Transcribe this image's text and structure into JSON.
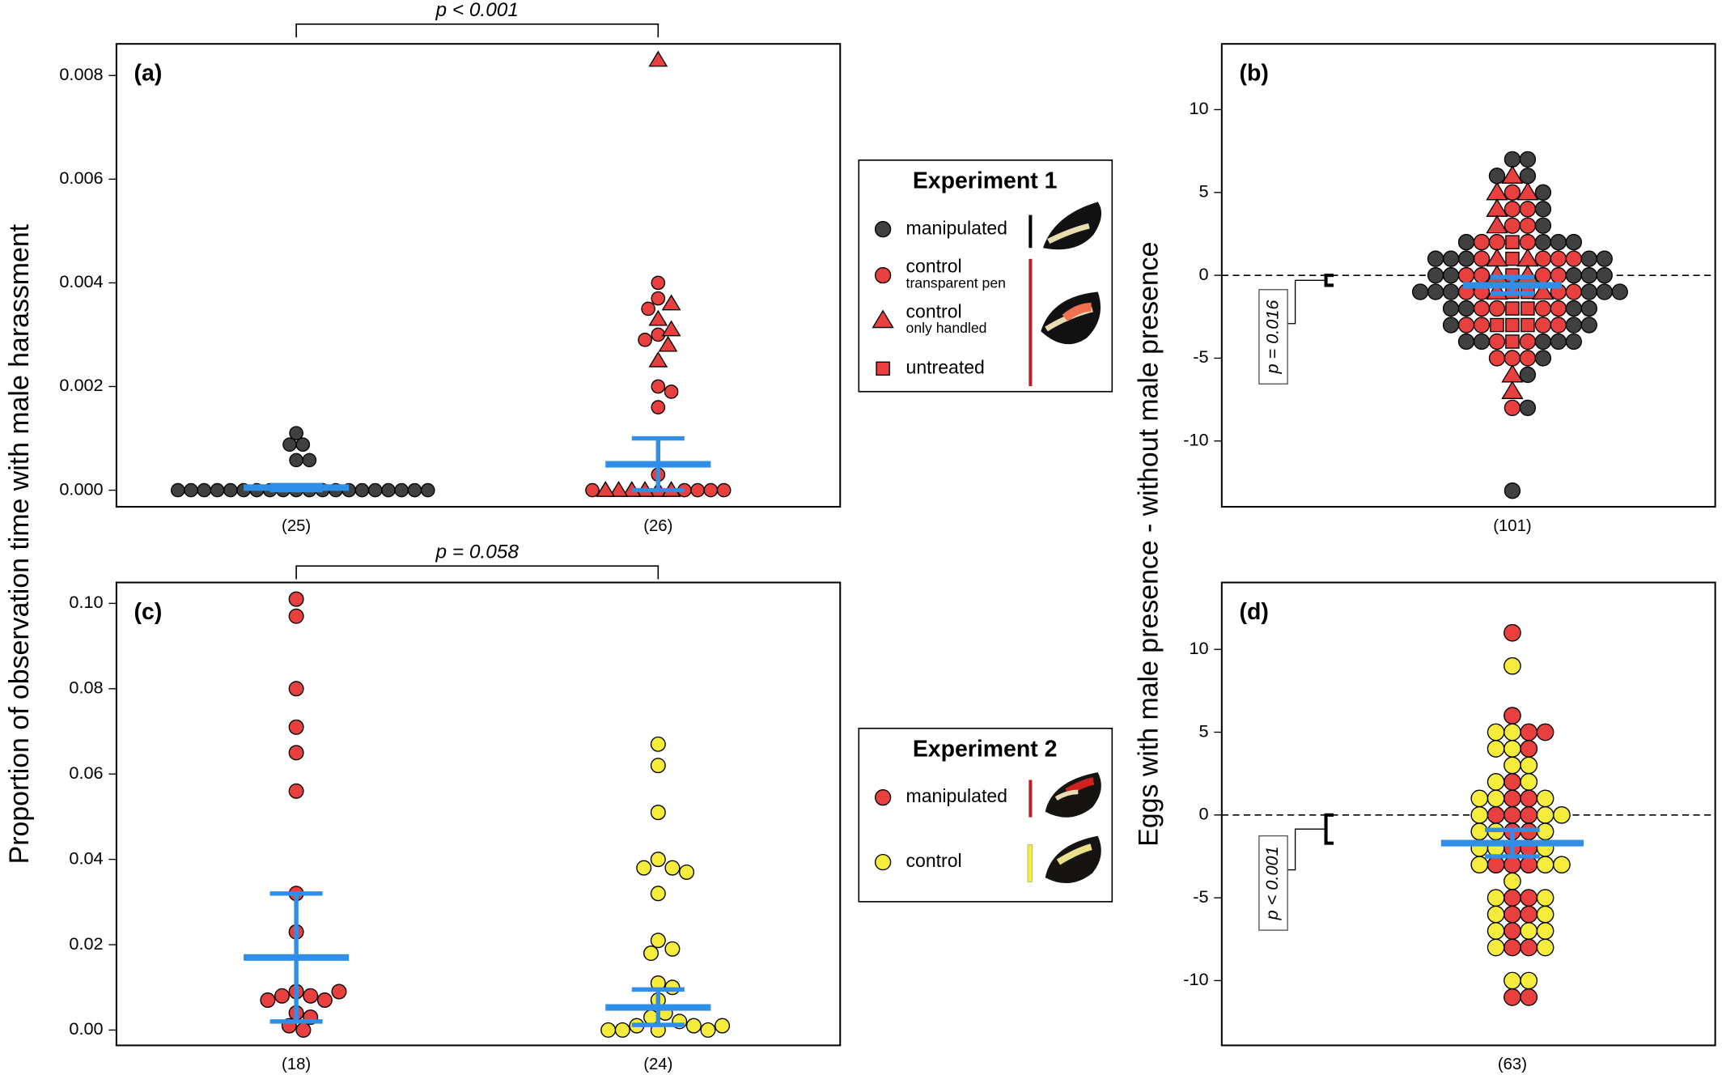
{
  "chart_data": [
    {
      "type": "beeswarm",
      "panel": "(a)",
      "ylabel": "Proportion of observation time with male harassment",
      "ylim": [
        -0.00032,
        0.00861
      ],
      "yticks": [
        {
          "value": 0,
          "label": "0.000"
        },
        {
          "value": 0.002,
          "label": "0.002"
        },
        {
          "value": 0.004,
          "label": "0.004"
        },
        {
          "value": 0.006,
          "label": "0.006"
        },
        {
          "value": 0.008,
          "label": "0.008"
        }
      ],
      "categories": [
        "(25)",
        "(26)"
      ],
      "groups": [
        {
          "series": [
            {
              "shape": "circle",
              "color": "#404040",
              "values": [
                0.0011,
                0.00088,
                0.00088,
                0.00058,
                0.00058,
                0,
                0,
                0,
                0,
                0,
                0,
                0,
                0,
                0,
                0,
                0,
                0,
                0,
                0,
                0,
                0,
                0,
                0,
                0,
                0
              ]
            }
          ],
          "mean": 5e-05,
          "ci": [
            0,
            0.0001
          ]
        },
        {
          "series": [
            {
              "shape": "circle",
              "color": "#e8403f",
              "values": [
                0.004,
                0.0037,
                0.0035,
                0.003,
                0.0029,
                0.002,
                0.0019,
                0.0016,
                0.0003,
                0,
                0,
                0,
                0,
                0
              ]
            },
            {
              "shape": "triangle",
              "color": "#e8403f",
              "values": [
                0.0083,
                0.0036,
                0.0033,
                0.0031,
                0.0028,
                0.0025,
                0,
                0,
                0,
                0,
                0,
                0
              ]
            }
          ],
          "mean": 0.0005,
          "ci": [
            0,
            0.001
          ]
        }
      ],
      "annotation": "p < 0.001"
    },
    {
      "type": "beeswarm",
      "panel": "(b)",
      "ylabel": "Eggs with male presence - without male presence",
      "ylim": [
        -13.97,
        13.97
      ],
      "yticks": [
        -10,
        -5,
        0,
        5,
        10
      ],
      "categories": [
        "(101)"
      ],
      "zero_line": true,
      "groups": [
        {
          "series": [
            {
              "shape": "circle",
              "color": "#404040",
              "values": [
                7,
                7,
                6,
                6,
                5,
                4,
                3,
                2,
                2,
                2,
                2,
                1,
                1,
                1,
                1,
                1,
                0,
                0,
                0,
                0,
                0,
                -1,
                -1,
                -1,
                -1,
                -1,
                -1,
                -2,
                -2,
                -2,
                -2,
                -3,
                -3,
                -3,
                -4,
                -4,
                -4,
                -4,
                -4,
                -5,
                -6,
                -8,
                -13
              ]
            },
            {
              "shape": "circle",
              "color": "#e8403f",
              "values": [
                5,
                4,
                4,
                3,
                3,
                2,
                2,
                2,
                1,
                1,
                1,
                1,
                0,
                0,
                0,
                0,
                -1,
                -1,
                -1,
                -1,
                -2,
                -2,
                -2,
                -2,
                -3,
                -3,
                -3,
                -3,
                -4,
                -4,
                -5,
                -5,
                -5,
                -8
              ]
            },
            {
              "shape": "triangle",
              "color": "#e8403f",
              "values": [
                6,
                5,
                5,
                4,
                3,
                1,
                1,
                0,
                0,
                -1,
                -1,
                -6,
                -7
              ]
            },
            {
              "shape": "square",
              "color": "#e8403f",
              "values": [
                2,
                1,
                0,
                -1,
                -1,
                -2,
                -2,
                -3,
                -3,
                -3,
                -4
              ]
            }
          ],
          "mean": -0.6,
          "ci": [
            -1.1,
            -0.1
          ]
        }
      ],
      "annotation": "p = 0.016"
    },
    {
      "type": "beeswarm",
      "panel": "(c)",
      "ylim": [
        -0.0036,
        0.1049
      ],
      "yticks": [
        {
          "value": 0,
          "label": "0.00"
        },
        {
          "value": 0.02,
          "label": "0.02"
        },
        {
          "value": 0.04,
          "label": "0.04"
        },
        {
          "value": 0.06,
          "label": "0.06"
        },
        {
          "value": 0.08,
          "label": "0.08"
        },
        {
          "value": 0.1,
          "label": "0.10"
        }
      ],
      "categories": [
        "(18)",
        "(24)"
      ],
      "groups": [
        {
          "series": [
            {
              "shape": "circle",
              "color": "#e8403f",
              "values": [
                0.101,
                0.097,
                0.08,
                0.071,
                0.065,
                0.056,
                0.032,
                0.023,
                0.009,
                0.008,
                0.008,
                0.007,
                0.007,
                0.004,
                0.003,
                0.001,
                0,
                0.009
              ]
            }
          ],
          "mean": 0.017,
          "ci": [
            0.002,
            0.032
          ]
        },
        {
          "series": [
            {
              "shape": "circle",
              "color": "#f5ec3c",
              "values": [
                0.067,
                0.062,
                0.051,
                0.04,
                0.038,
                0.038,
                0.037,
                0.032,
                0.021,
                0.019,
                0.018,
                0.011,
                0.01,
                0.007,
                0.004,
                0.003,
                0.002,
                0.001,
                0.001,
                0,
                0,
                0,
                0,
                0.001
              ]
            }
          ],
          "mean": 0.0053,
          "ci": [
            0.0012,
            0.0095
          ]
        }
      ],
      "annotation": "p = 0.058"
    },
    {
      "type": "beeswarm",
      "panel": "(d)",
      "ylim": [
        -13.91,
        14.04
      ],
      "yticks": [
        -10,
        -5,
        0,
        5,
        10
      ],
      "categories": [
        "(63)"
      ],
      "zero_line": true,
      "groups": [
        {
          "series": [
            {
              "shape": "circle",
              "color": "#e8403f",
              "values": [
                11,
                6,
                5,
                5,
                4,
                2,
                1,
                1,
                0,
                0,
                0,
                -1,
                -1,
                -2,
                -2,
                -3,
                -3,
                -3,
                -5,
                -5,
                -6,
                -6,
                -7,
                -8,
                -8,
                -11,
                -11
              ]
            },
            {
              "shape": "circle",
              "color": "#f5ec3c",
              "values": [
                9,
                5,
                5,
                4,
                4,
                3,
                3,
                2,
                2,
                1,
                1,
                1,
                0,
                0,
                0,
                -1,
                -1,
                -1,
                -2,
                -2,
                -2,
                -3,
                -3,
                -3,
                -4,
                -5,
                -5,
                -6,
                -6,
                -7,
                -7,
                -7,
                -8,
                -8,
                -10,
                -10
              ]
            }
          ],
          "mean": -1.7,
          "ci": [
            -2.5,
            -0.9
          ]
        }
      ],
      "annotation": "p < 0.001"
    }
  ],
  "legends": [
    {
      "title": "Experiment 1",
      "entries": [
        {
          "name": "manipulated",
          "shape": "circle",
          "color": "#404040"
        },
        {
          "name": "control",
          "note": "transparent pen",
          "shape": "circle",
          "color": "#e8403f"
        },
        {
          "name": "control",
          "note": "only handled",
          "shape": "triangle",
          "color": "#e8403f"
        },
        {
          "name": "untreated",
          "shape": "square",
          "color": "#e8403f"
        }
      ]
    },
    {
      "title": "Experiment 2",
      "entries": [
        {
          "name": "manipulated",
          "shape": "circle",
          "color": "#e8403f"
        },
        {
          "name": "control",
          "shape": "circle",
          "color": "#f5ec3c"
        }
      ]
    }
  ]
}
